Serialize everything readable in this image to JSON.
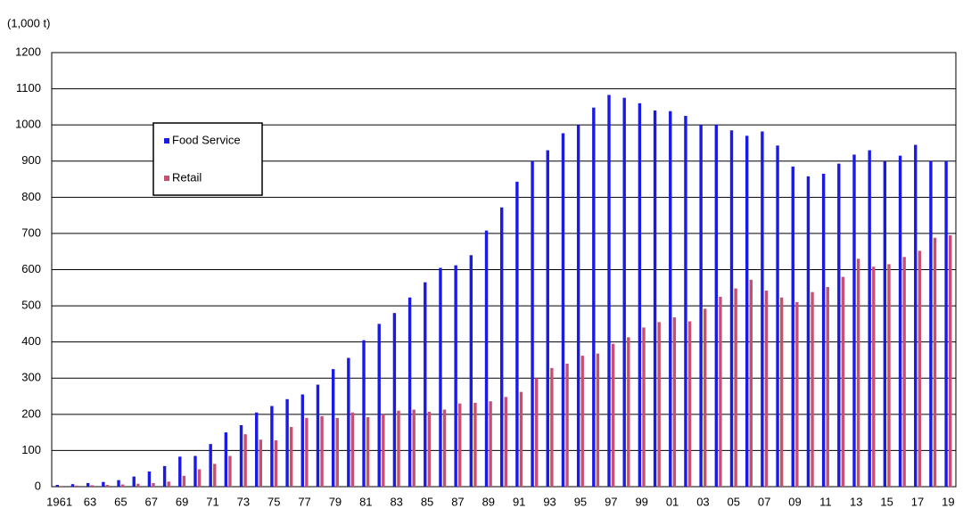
{
  "chart_data": {
    "type": "bar",
    "y_label": "(1,000 t)",
    "categories": [
      "1961",
      null,
      "63",
      null,
      "65",
      null,
      "67",
      null,
      "69",
      null,
      "71",
      null,
      "73",
      null,
      "75",
      null,
      "77",
      null,
      "79",
      null,
      "81",
      null,
      "83",
      null,
      "85",
      null,
      "87",
      null,
      "89",
      null,
      "91",
      null,
      "93",
      null,
      "95",
      null,
      "97",
      null,
      "99",
      null,
      "01",
      null,
      "03",
      null,
      "05",
      null,
      "07",
      null,
      "09",
      null,
      "11",
      null,
      "13",
      null,
      "15",
      null,
      "17",
      null,
      "19"
    ],
    "series": [
      {
        "name": "Food Service",
        "color": "#1a1ae6",
        "values": [
          5,
          7,
          10,
          13,
          18,
          28,
          42,
          57,
          83,
          85,
          118,
          150,
          170,
          205,
          223,
          242,
          255,
          282,
          325,
          356,
          405,
          450,
          480,
          523,
          565,
          605,
          612,
          640,
          708,
          772,
          843,
          900,
          930,
          977,
          1000,
          1048,
          1083,
          1075,
          1060,
          1040,
          1038,
          1025,
          1000,
          1000,
          985,
          970,
          982,
          943,
          885,
          858,
          865,
          893,
          918,
          930,
          900,
          915,
          945,
          900,
          900
        ]
      },
      {
        "name": "Retail",
        "color": "#c8506e",
        "values": [
          2,
          3,
          4,
          5,
          6,
          8,
          10,
          14,
          30,
          48,
          63,
          85,
          145,
          130,
          128,
          165,
          190,
          195,
          190,
          205,
          192,
          200,
          210,
          213,
          207,
          213,
          230,
          232,
          236,
          248,
          262,
          300,
          328,
          340,
          362,
          368,
          395,
          413,
          440,
          455,
          468,
          457,
          492,
          525,
          548,
          572,
          542,
          523,
          510,
          538,
          552,
          580,
          630,
          608,
          615,
          635,
          652,
          688,
          695
        ]
      }
    ],
    "ylim": [
      0,
      1200
    ],
    "yticks": [
      0,
      100,
      200,
      300,
      400,
      500,
      600,
      700,
      800,
      900,
      1000,
      1100,
      1200
    ],
    "grid": true,
    "legend": "upper left"
  }
}
